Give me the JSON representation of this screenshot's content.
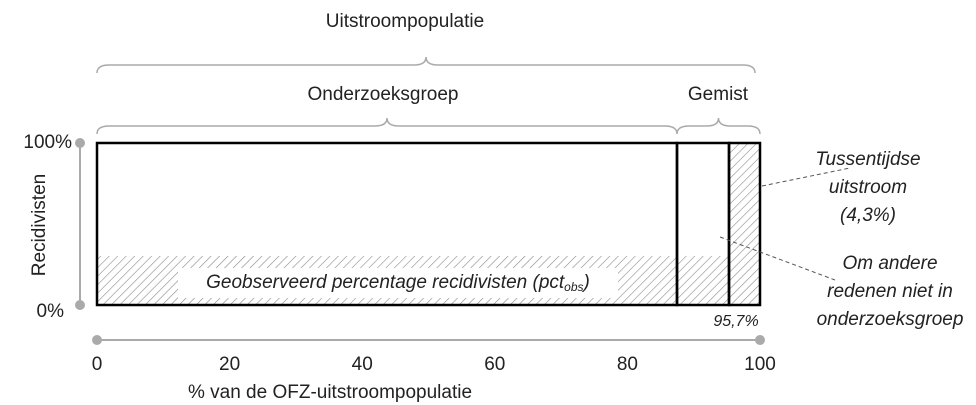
{
  "header": {
    "title": "Uitstroompopulatie"
  },
  "groups": {
    "studied": "Onderzoeksgroep",
    "missed": "Gemist"
  },
  "y_axis": {
    "title": "Recidivisten",
    "top_label": "100%",
    "bottom_label": "0%"
  },
  "x_axis": {
    "title": "% van de OFZ-uitstroompopulatie",
    "ticks": [
      "0",
      "20",
      "40",
      "60",
      "80",
      "100"
    ]
  },
  "observed": {
    "main": "Geobserveerd percentage recidivisten (pct",
    "sub": "obs",
    "end": ")"
  },
  "marker": "95,7%",
  "notes": {
    "interim": [
      "Tussentijdse",
      "uitstroom",
      "(4,3%)"
    ],
    "other": [
      "Om andere",
      "redenen niet in",
      "onderzoeksgroep"
    ]
  }
}
